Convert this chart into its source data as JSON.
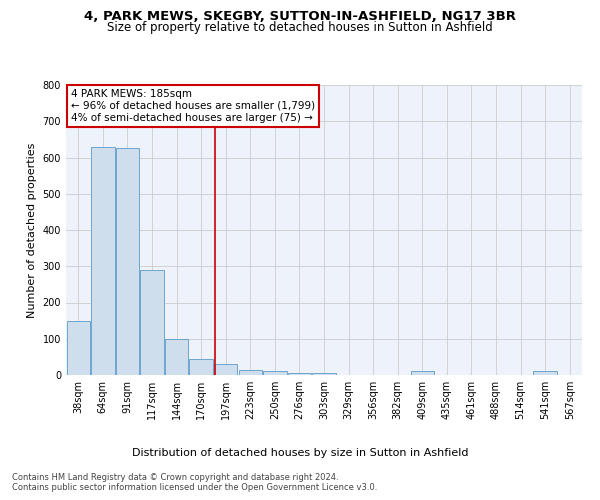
{
  "title1": "4, PARK MEWS, SKEGBY, SUTTON-IN-ASHFIELD, NG17 3BR",
  "title2": "Size of property relative to detached houses in Sutton in Ashfield",
  "xlabel": "Distribution of detached houses by size in Sutton in Ashfield",
  "ylabel": "Number of detached properties",
  "bin_labels": [
    "38sqm",
    "64sqm",
    "91sqm",
    "117sqm",
    "144sqm",
    "170sqm",
    "197sqm",
    "223sqm",
    "250sqm",
    "276sqm",
    "303sqm",
    "329sqm",
    "356sqm",
    "382sqm",
    "409sqm",
    "435sqm",
    "461sqm",
    "488sqm",
    "514sqm",
    "541sqm",
    "567sqm"
  ],
  "bar_heights": [
    150,
    630,
    625,
    290,
    100,
    45,
    30,
    15,
    10,
    5,
    5,
    0,
    0,
    0,
    10,
    0,
    0,
    0,
    0,
    10,
    0
  ],
  "bar_color": "#cfdeed",
  "bar_edge_color": "#5b9ac9",
  "grid_color": "#cccccc",
  "background_color": "#eef2fa",
  "vline_x": 5.56,
  "vline_color": "#cc0000",
  "annotation_text": "4 PARK MEWS: 185sqm\n← 96% of detached houses are smaller (1,799)\n4% of semi-detached houses are larger (75) →",
  "annotation_box_color": "#ffffff",
  "annotation_box_edge": "#cc0000",
  "ylim": [
    0,
    800
  ],
  "yticks": [
    0,
    100,
    200,
    300,
    400,
    500,
    600,
    700,
    800
  ],
  "footer_text": "Contains HM Land Registry data © Crown copyright and database right 2024.\nContains public sector information licensed under the Open Government Licence v3.0.",
  "title1_fontsize": 9.5,
  "title2_fontsize": 8.5,
  "xlabel_fontsize": 8,
  "ylabel_fontsize": 8,
  "tick_fontsize": 7,
  "annotation_fontsize": 7.5,
  "footer_fontsize": 6
}
